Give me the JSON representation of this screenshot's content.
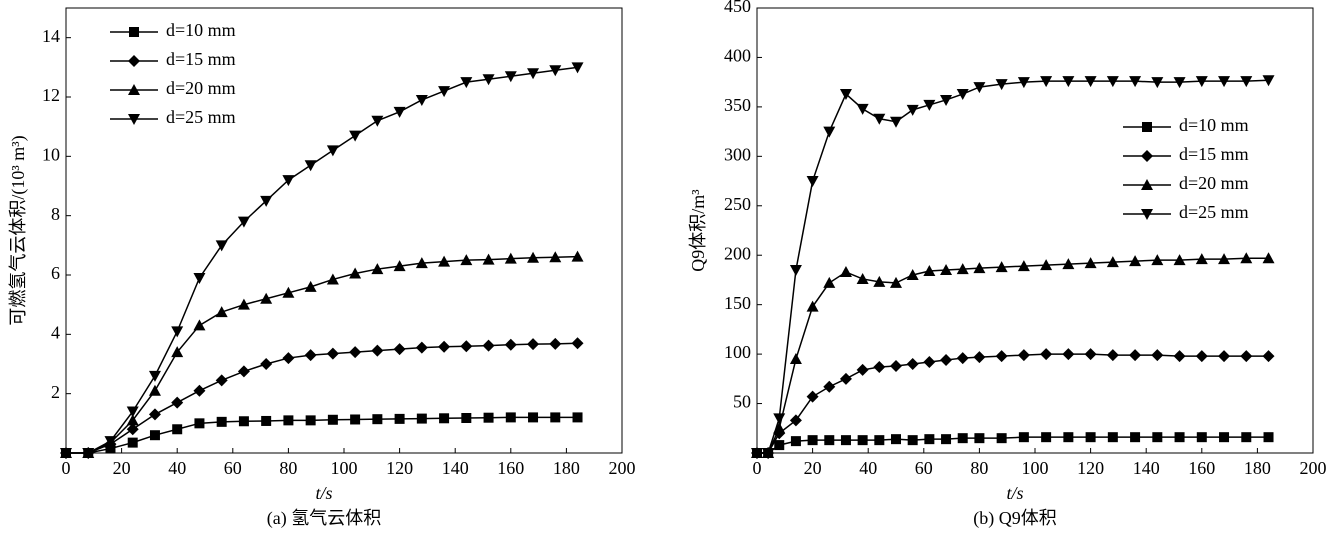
{
  "chart_data": [
    {
      "type": "line",
      "caption": "(a) 氢气云体积",
      "x_label": "t/s",
      "y_label": "可燃氢气云体积/(10³ m³)",
      "x": [
        0,
        8,
        16,
        24,
        32,
        40,
        48,
        56,
        64,
        72,
        80,
        88,
        96,
        104,
        112,
        120,
        128,
        136,
        144,
        152,
        160,
        168,
        176,
        184
      ],
      "xlim": [
        0,
        200
      ],
      "xticks": [
        0,
        20,
        40,
        60,
        80,
        100,
        120,
        140,
        160,
        180,
        200
      ],
      "ylim": [
        0,
        15
      ],
      "yticks": [
        2,
        4,
        6,
        8,
        10,
        12,
        14
      ],
      "legend": "upper left",
      "series": [
        {
          "name": "d=10 mm",
          "color": "#000000",
          "marker": "square",
          "values": [
            0,
            0,
            0.15,
            0.35,
            0.6,
            0.8,
            1.0,
            1.05,
            1.07,
            1.08,
            1.1,
            1.1,
            1.12,
            1.13,
            1.14,
            1.15,
            1.16,
            1.17,
            1.18,
            1.19,
            1.2,
            1.2,
            1.2,
            1.2
          ]
        },
        {
          "name": "d=15 mm",
          "color": "#000000",
          "marker": "diamond",
          "values": [
            0,
            0,
            0.3,
            0.8,
            1.3,
            1.7,
            2.1,
            2.45,
            2.75,
            3.0,
            3.2,
            3.3,
            3.35,
            3.4,
            3.45,
            3.5,
            3.55,
            3.58,
            3.6,
            3.62,
            3.65,
            3.67,
            3.68,
            3.7
          ]
        },
        {
          "name": "d=20 mm",
          "color": "#000000",
          "marker": "triangle-up",
          "values": [
            0,
            0,
            0.35,
            1.1,
            2.1,
            3.4,
            4.3,
            4.75,
            5.0,
            5.2,
            5.4,
            5.6,
            5.85,
            6.05,
            6.2,
            6.3,
            6.4,
            6.45,
            6.5,
            6.52,
            6.55,
            6.58,
            6.6,
            6.62
          ]
        },
        {
          "name": "d=25 mm",
          "color": "#000000",
          "marker": "triangle-down",
          "values": [
            0,
            0,
            0.4,
            1.4,
            2.6,
            4.1,
            5.9,
            7.0,
            7.8,
            8.5,
            9.2,
            9.7,
            10.2,
            10.7,
            11.2,
            11.5,
            11.9,
            12.2,
            12.5,
            12.6,
            12.7,
            12.8,
            12.9,
            13.0
          ]
        }
      ]
    },
    {
      "type": "line",
      "caption": "(b) Q9体积",
      "x_label": "t/s",
      "y_label": "Q9体积/m³",
      "x": [
        0,
        4,
        8,
        14,
        20,
        26,
        32,
        38,
        44,
        50,
        56,
        62,
        68,
        74,
        80,
        88,
        96,
        104,
        112,
        120,
        128,
        136,
        144,
        152,
        160,
        168,
        176,
        184
      ],
      "xlim": [
        0,
        200
      ],
      "xticks": [
        0,
        20,
        40,
        60,
        80,
        100,
        120,
        140,
        160,
        180,
        200
      ],
      "ylim": [
        0,
        450
      ],
      "yticks": [
        50,
        100,
        150,
        200,
        250,
        300,
        350,
        400,
        450
      ],
      "legend": "center right",
      "series": [
        {
          "name": "d=10 mm",
          "color": "#000000",
          "marker": "square",
          "values": [
            0,
            0,
            8,
            12,
            13,
            13,
            13,
            13,
            13,
            14,
            13,
            14,
            14,
            15,
            15,
            15,
            16,
            16,
            16,
            16,
            16,
            16,
            16,
            16,
            16,
            16,
            16,
            16
          ]
        },
        {
          "name": "d=15 mm",
          "color": "#000000",
          "marker": "diamond",
          "values": [
            0,
            0,
            20,
            33,
            57,
            67,
            75,
            84,
            87,
            88,
            90,
            92,
            94,
            96,
            97,
            98,
            99,
            100,
            100,
            100,
            99,
            99,
            99,
            98,
            98,
            98,
            98,
            98
          ]
        },
        {
          "name": "d=20 mm",
          "color": "#000000",
          "marker": "triangle-up",
          "values": [
            0,
            0,
            25,
            95,
            148,
            172,
            183,
            176,
            173,
            172,
            180,
            184,
            185,
            186,
            187,
            188,
            189,
            190,
            191,
            192,
            193,
            194,
            195,
            195,
            196,
            196,
            197,
            197
          ]
        },
        {
          "name": "d=25 mm",
          "color": "#000000",
          "marker": "triangle-down",
          "values": [
            0,
            0,
            35,
            185,
            275,
            325,
            363,
            348,
            338,
            335,
            347,
            352,
            357,
            363,
            370,
            373,
            375,
            376,
            376,
            376,
            376,
            376,
            375,
            375,
            376,
            376,
            376,
            377
          ]
        }
      ]
    }
  ]
}
